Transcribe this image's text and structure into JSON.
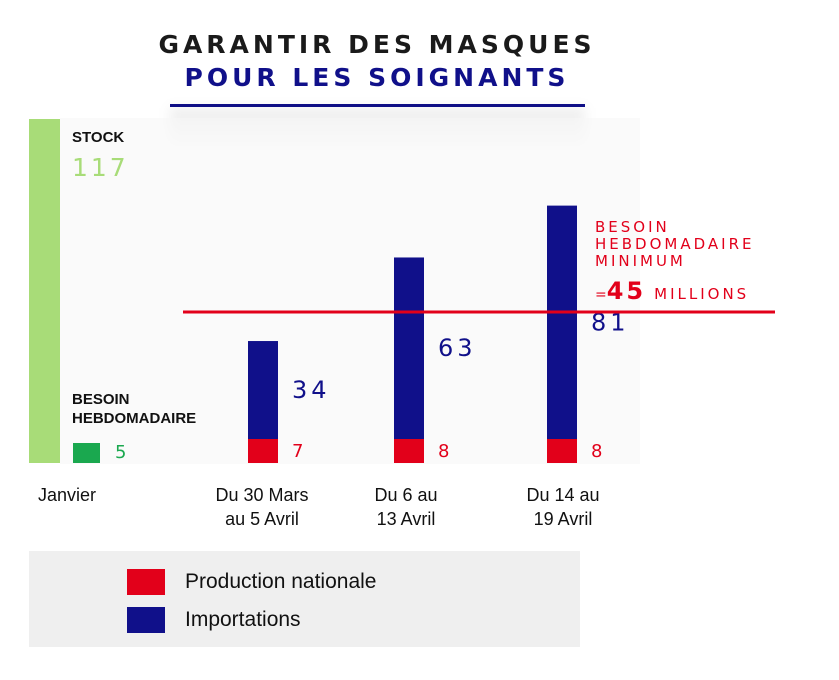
{
  "title": {
    "line1": "GARANTIR DES MASQUES",
    "line2": "POUR LES SOIGNANTS"
  },
  "colors": {
    "stock": "#a8dc78",
    "besoin": "#1aa84f",
    "production": "#e2001a",
    "importations": "#10108a",
    "line": "#e2001a"
  },
  "legend": [
    {
      "label": "Production nationale",
      "color": "#e2001a"
    },
    {
      "label": "Importations",
      "color": "#10108a"
    }
  ],
  "chart_data": {
    "type": "bar",
    "categories": [
      "Janvier",
      "Du 30 Mars au 5 Avril",
      "Du 6 au 13 Avril",
      "Du 14 au 19 Avril"
    ],
    "category_lines": [
      [
        "Janvier"
      ],
      [
        "Du 30 Mars",
        "au 5 Avril"
      ],
      [
        "Du 6 au",
        "13 Avril"
      ],
      [
        "Du 14 au",
        "19 Avril"
      ]
    ],
    "stock": {
      "label": "STOCK",
      "value": 117
    },
    "besoin_hebdomadaire": {
      "label_lines": [
        "BESOIN",
        "HEBDOMADAIRE"
      ],
      "value": 5
    },
    "series": [
      {
        "name": "Production nationale",
        "values": [
          null,
          7,
          8,
          8
        ]
      },
      {
        "name": "Importations",
        "values": [
          null,
          34,
          63,
          81
        ]
      }
    ],
    "reference_line": {
      "value": 45,
      "label_lines": [
        "BESOIN",
        "HEBDOMADAIRE",
        "MINIMUM"
      ],
      "prefix": "=",
      "value_text": "45",
      "suffix": "MILLIONS"
    },
    "ylim": [
      0,
      117
    ]
  }
}
